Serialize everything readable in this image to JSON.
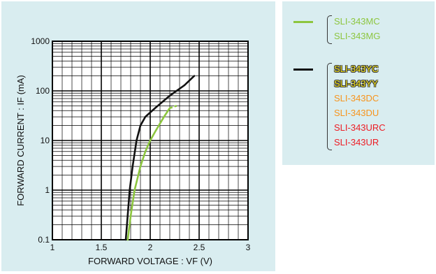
{
  "chart_data": {
    "type": "line",
    "title": "",
    "xlabel": "FORWARD  VOLTAGE : VF  (V)",
    "ylabel": "FORWARD  CURRENT : IF  (mA)",
    "xlim": [
      1,
      3
    ],
    "ylim": [
      0.1,
      1000
    ],
    "yscale": "log",
    "grid": true,
    "x_ticks": [
      "1",
      "1.5",
      "2",
      "2.5",
      "3"
    ],
    "y_ticks": [
      "0.1",
      "1",
      "10",
      "100",
      "1000"
    ],
    "series": [
      {
        "id": "green",
        "color": "#8dc63f",
        "dashed_end": true,
        "points": [
          [
            1.77,
            0.1
          ],
          [
            1.8,
            0.3
          ],
          [
            1.84,
            1
          ],
          [
            1.9,
            3
          ],
          [
            1.95,
            6
          ],
          [
            2.0,
            10
          ],
          [
            2.05,
            15
          ],
          [
            2.1,
            22
          ],
          [
            2.15,
            32
          ],
          [
            2.2,
            45
          ],
          [
            2.27,
            50
          ]
        ]
      },
      {
        "id": "black",
        "color": "#111111",
        "dashed_end": false,
        "points": [
          [
            1.75,
            0.1
          ],
          [
            1.79,
            1
          ],
          [
            1.82,
            3
          ],
          [
            1.86,
            10
          ],
          [
            1.9,
            20
          ],
          [
            1.95,
            30
          ],
          [
            2.05,
            45
          ],
          [
            2.2,
            80
          ],
          [
            2.35,
            130
          ],
          [
            2.45,
            200
          ]
        ]
      }
    ]
  },
  "legend": {
    "groups": [
      {
        "line_color": "#8dc63f",
        "items": [
          {
            "label": "SLI-343MC",
            "color": "#8dc63f",
            "outlined": false
          },
          {
            "label": "SLI-343MG",
            "color": "#8dc63f",
            "outlined": false
          }
        ]
      },
      {
        "line_color": "#111111",
        "items": [
          {
            "label": "SLI-343YC",
            "color": "#f5e61c",
            "outlined": true
          },
          {
            "label": "SLI-343YY",
            "color": "#f5e61c",
            "outlined": true
          },
          {
            "label": "SLI-343DC",
            "color": "#f7941d",
            "outlined": false
          },
          {
            "label": "SLI-343DU",
            "color": "#f7941d",
            "outlined": false
          },
          {
            "label": "SLI-343URC",
            "color": "#ed1c24",
            "outlined": false
          },
          {
            "label": "SLI-343UR",
            "color": "#ed1c24",
            "outlined": false
          }
        ]
      }
    ]
  }
}
